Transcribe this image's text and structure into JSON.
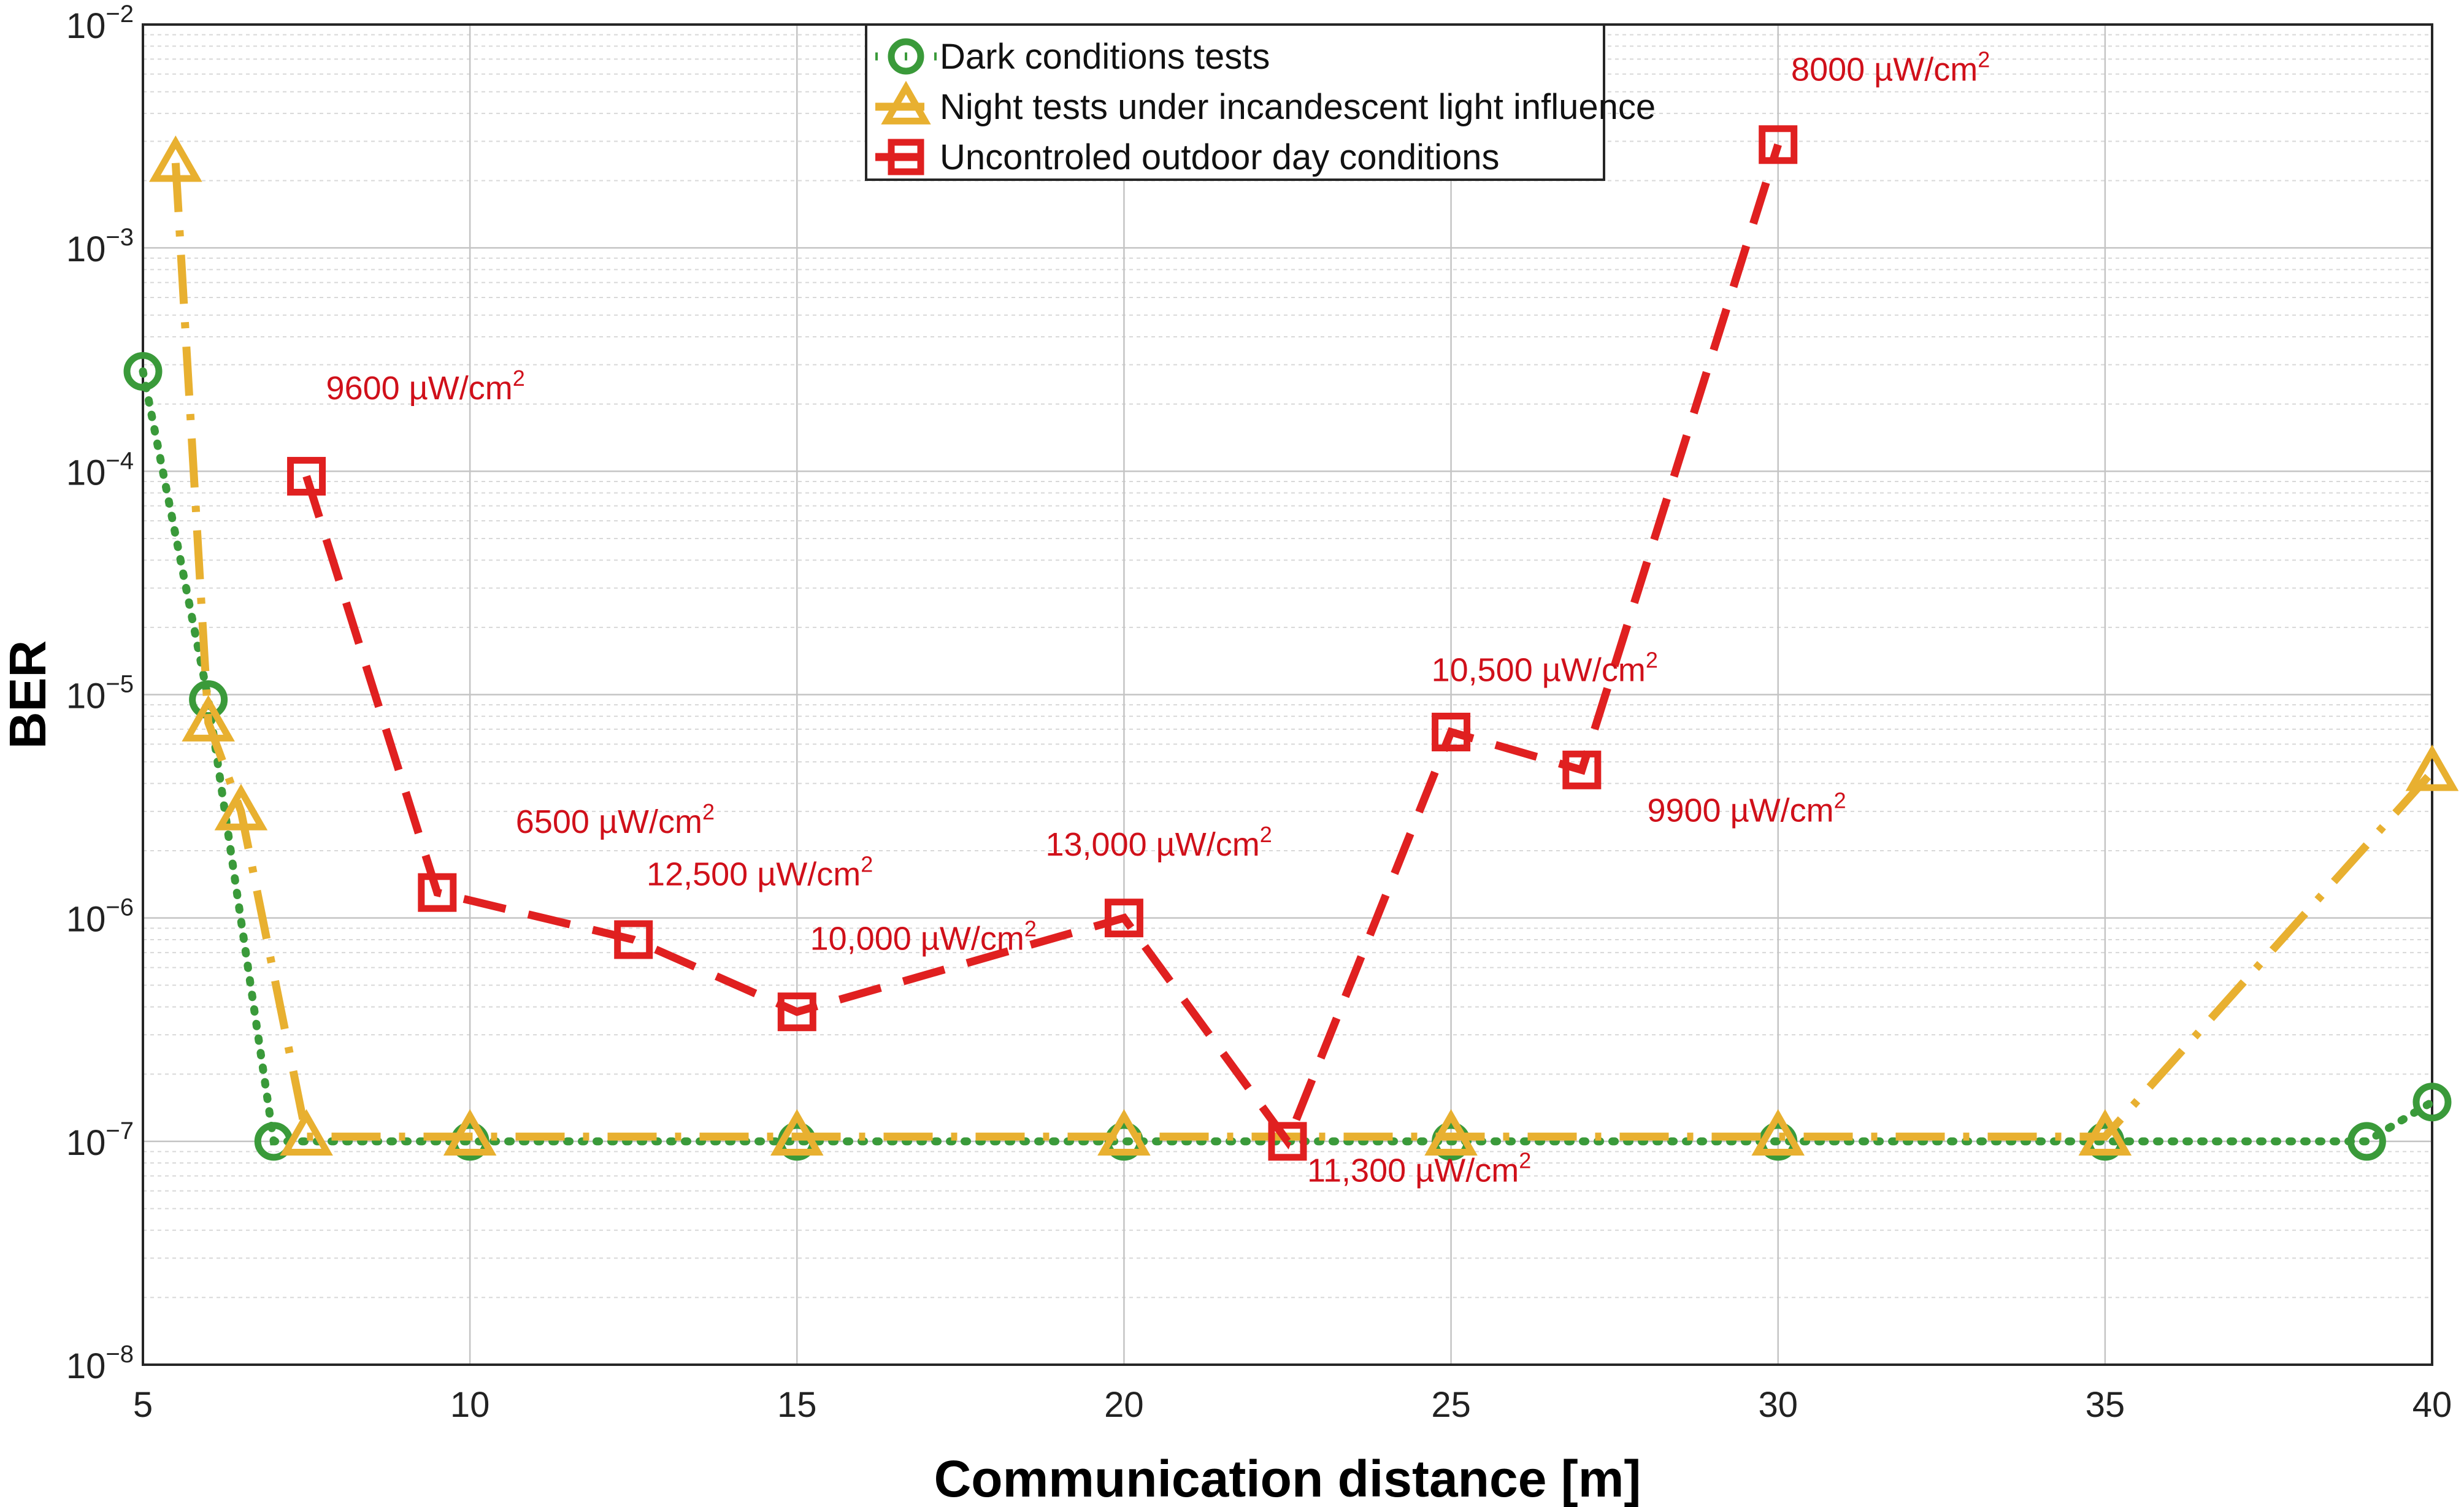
{
  "chart_data": {
    "type": "line",
    "title": "",
    "xlabel": "Communication distance [m]",
    "ylabel": "BER",
    "yscale": "log",
    "xlim": [
      5,
      40
    ],
    "ylim": [
      1e-08,
      0.01
    ],
    "grid": true,
    "legend_position": "top-center",
    "x_ticks": [
      "5",
      "10",
      "15",
      "20",
      "25",
      "30",
      "35",
      "40"
    ],
    "y_ticks": [
      {
        "base": "10",
        "exp": "−8",
        "value": 1e-08
      },
      {
        "base": "10",
        "exp": "−7",
        "value": 1e-07
      },
      {
        "base": "10",
        "exp": "−6",
        "value": 1e-06
      },
      {
        "base": "10",
        "exp": "−5",
        "value": 1e-05
      },
      {
        "base": "10",
        "exp": "−4",
        "value": 0.0001
      },
      {
        "base": "10",
        "exp": "−3",
        "value": 0.001
      },
      {
        "base": "10",
        "exp": "−2",
        "value": 0.01
      }
    ],
    "series": [
      {
        "name": "Dark conditions tests",
        "color": "#3a9a3a",
        "marker": "circle",
        "dash": "dotted",
        "x": [
          5,
          6,
          7,
          10,
          15,
          20,
          25,
          30,
          35,
          39,
          40
        ],
        "y": [
          0.00028,
          9.5e-06,
          1e-07,
          1e-07,
          1e-07,
          1e-07,
          1e-07,
          1e-07,
          1e-07,
          1e-07,
          1.5e-07
        ]
      },
      {
        "name": "Night tests under incandescent light influence",
        "color": "#e8b030",
        "marker": "triangle",
        "dash": "dashdot",
        "x": [
          5.5,
          6,
          6.5,
          7.5,
          10,
          15,
          20,
          25,
          30,
          35,
          40
        ],
        "y": [
          0.0024,
          7.5e-06,
          3e-06,
          1.05e-07,
          1.05e-07,
          1.05e-07,
          1.05e-07,
          1.05e-07,
          1.05e-07,
          1.05e-07,
          4.5e-06
        ]
      },
      {
        "name": "Uncontroled outdoor day conditions",
        "color": "#e02020",
        "marker": "square",
        "dash": "dashed",
        "x": [
          7.5,
          9.5,
          12.5,
          15,
          20,
          22.5,
          25,
          27,
          30
        ],
        "y": [
          9.5e-05,
          1.3e-06,
          8e-07,
          3.8e-07,
          1e-06,
          1e-07,
          6.8e-06,
          4.6e-06,
          0.0029
        ]
      }
    ],
    "annotations": [
      {
        "text": "9600 µW/cm",
        "sup": "2",
        "x": 7.8,
        "y": 0.00021
      },
      {
        "text": "6500 µW/cm",
        "sup": "2",
        "x": 10.7,
        "y": 2.4e-06
      },
      {
        "text": "12,500 µW/cm",
        "sup": "2",
        "x": 12.7,
        "y": 1.4e-06
      },
      {
        "text": "10,000 µW/cm",
        "sup": "2",
        "x": 15.2,
        "y": 7.2e-07
      },
      {
        "text": "13,000 µW/cm",
        "sup": "2",
        "x": 18.8,
        "y": 1.9e-06
      },
      {
        "text": "11,300 µW/cm",
        "sup": "2",
        "x": 22.8,
        "y": 6.6e-08
      },
      {
        "text": "10,500 µW/cm",
        "sup": "2",
        "x": 24.7,
        "y": 1.15e-05
      },
      {
        "text": "9900 µW/cm",
        "sup": "2",
        "x": 28.0,
        "y": 2.7e-06
      },
      {
        "text": "8000 µW/cm",
        "sup": "2",
        "x": 30.2,
        "y": 0.0056
      }
    ]
  }
}
